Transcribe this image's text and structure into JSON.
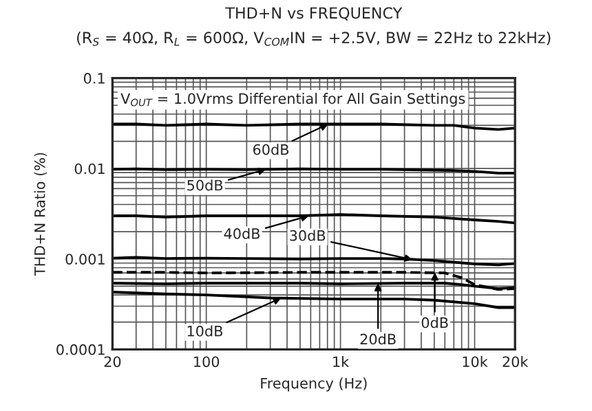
{
  "chart_data": {
    "type": "line",
    "title": "THD+N vs FREQUENCY",
    "subtitle": "(R$_{S}$ = 40Ω, R$_{L}$ = 600Ω, V$_{COM}$IN = +2.5V, BW = 22Hz to 22kHz)",
    "xlabel": "Frequency (Hz)",
    "ylabel": "THD+N Ratio (%)",
    "log": "xy",
    "grid": true,
    "xlim": [
      20,
      20000
    ],
    "ylim": [
      0.0001,
      0.1
    ],
    "xticks": [
      20,
      100,
      {
        "value": 1000,
        "label": "1k"
      },
      {
        "value": 10000,
        "label": "10k"
      },
      {
        "value": 20000,
        "label": "20k"
      }
    ],
    "yticks": [
      0.0001,
      0.001,
      0.01,
      0.1
    ],
    "series": [
      {
        "color": "#000000",
        "line_style": "solid",
        "x": [
          20,
          30,
          50,
          100,
          200,
          500,
          1000,
          2000,
          5000,
          7000,
          10000,
          15000,
          20000
        ],
        "values": [
          0.031,
          0.031,
          0.03,
          0.031,
          0.03,
          0.031,
          0.031,
          0.031,
          0.03,
          0.03,
          0.028,
          0.027,
          0.028
        ]
      },
      {
        "color": "#000000",
        "line_style": "solid",
        "x": [
          20,
          30,
          50,
          100,
          200,
          500,
          1000,
          2000,
          5000,
          7000,
          10000,
          15000,
          20000
        ],
        "values": [
          0.0098,
          0.0099,
          0.0097,
          0.0098,
          0.0097,
          0.0099,
          0.0098,
          0.0098,
          0.0096,
          0.0095,
          0.0093,
          0.0089,
          0.0089
        ]
      },
      {
        "color": "#000000",
        "line_style": "solid",
        "x": [
          20,
          30,
          50,
          100,
          200,
          500,
          1000,
          2000,
          5000,
          7000,
          10000,
          15000,
          20000
        ],
        "values": [
          0.003,
          0.003,
          0.0029,
          0.003,
          0.003,
          0.003,
          0.0031,
          0.003,
          0.0029,
          0.0028,
          0.0027,
          0.0026,
          0.0025
        ]
      },
      {
        "color": "#000000",
        "line_style": "solid",
        "x": [
          20,
          30,
          50,
          100,
          200,
          500,
          1000,
          2000,
          3000,
          5000,
          10000,
          15000,
          20000
        ],
        "values": [
          0.00102,
          0.00104,
          0.00101,
          0.00102,
          0.00101,
          0.001,
          0.00101,
          0.00101,
          0.001,
          0.00096,
          0.00088,
          0.00086,
          0.00089
        ]
      },
      {
        "color": "#000000",
        "line_style": "dashed",
        "x": [
          20,
          50,
          100,
          500,
          1000,
          3000,
          6000,
          8000,
          10000,
          15000,
          20000
        ],
        "values": [
          0.00071,
          0.00071,
          0.0007,
          0.00071,
          0.00071,
          0.00071,
          0.0007,
          0.00062,
          0.00052,
          0.00046,
          0.00047
        ]
      },
      {
        "color": "#000000",
        "line_style": "solid",
        "x": [
          20,
          50,
          100,
          500,
          1000,
          3000,
          6000,
          8000,
          10000,
          15000,
          20000
        ],
        "values": [
          0.00054,
          0.00053,
          0.00054,
          0.00054,
          0.00053,
          0.00054,
          0.00054,
          0.00052,
          0.0005,
          0.00047,
          0.00048
        ]
      },
      {
        "color": "#000000",
        "line_style": "solid",
        "x": [
          20,
          50,
          100,
          300,
          1000,
          3000,
          5000,
          10000,
          15000,
          20000
        ],
        "values": [
          0.00043,
          0.00041,
          0.0004,
          0.00037,
          0.00036,
          0.00036,
          0.00035,
          0.00032,
          0.00029,
          0.00029
        ]
      }
    ],
    "annotations": [
      {
        "text": "60dB",
        "x": 811,
        "y": 0.031
      },
      {
        "text": "50dB",
        "x": 279,
        "y": 0.0098
      },
      {
        "text": "40dB",
        "x": 582,
        "y": 0.003
      },
      {
        "text": "30dB",
        "x": 3450,
        "y": 0.00098
      },
      {
        "text": "20dB",
        "x": 1905,
        "y": 0.00054
      },
      {
        "text": "0dB",
        "x": 5050,
        "y": 0.00071
      },
      {
        "text": "10dB",
        "x": 362,
        "y": 0.00037
      },
      "V$_{OUT}$ = 1.0Vrms Differential for All Gain Settings"
    ]
  }
}
